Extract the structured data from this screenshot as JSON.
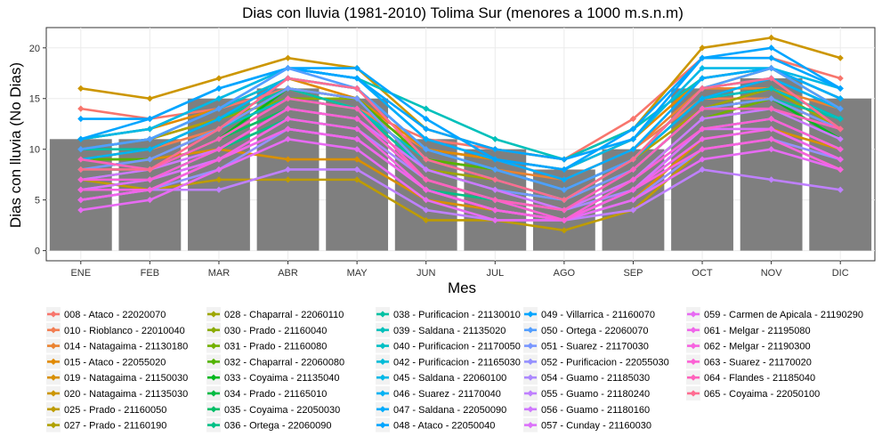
{
  "chart_data": {
    "type": "line",
    "title": "Dias con lluvia (1981-2010) Tolima Sur (menores a 1000 m.s.n.m)",
    "xlabel": "Mes",
    "ylabel": "Dias con lluvia (No Dias)",
    "categories": [
      "ENE",
      "FEB",
      "MAR",
      "ABR",
      "MAY",
      "JUN",
      "JUL",
      "AGO",
      "SEP",
      "OCT",
      "NOV",
      "DIC"
    ],
    "yticks": [
      0,
      5,
      10,
      15,
      20
    ],
    "ylim": [
      -1,
      22
    ],
    "bar_color": "#7f7f7f",
    "bars": [
      11,
      11,
      15,
      16,
      15,
      11,
      10,
      8,
      10,
      16,
      17,
      15
    ],
    "grid": true,
    "legend_position": "bottom",
    "series": [
      {
        "name": "008 - Ataco - 22020070",
        "color": "#F8766D",
        "values": [
          14,
          13,
          14,
          16,
          14,
          11,
          10,
          9,
          13,
          19,
          19,
          17
        ]
      },
      {
        "name": "010 - Rioblanco - 22010040",
        "color": "#F27D52",
        "values": [
          9,
          10,
          12,
          16,
          14,
          10,
          9,
          7,
          10,
          15,
          15,
          13
        ]
      },
      {
        "name": "014 - Natagaima - 21130180",
        "color": "#EA8331",
        "values": [
          10,
          11,
          13,
          15,
          14,
          9,
          8,
          7,
          10,
          16,
          16,
          14
        ]
      },
      {
        "name": "015 - Ataco - 22055020",
        "color": "#E18A00",
        "values": [
          11,
          12,
          14,
          17,
          15,
          10,
          9,
          8,
          11,
          17,
          18,
          15
        ]
      },
      {
        "name": "019 - Natagaima - 21150030",
        "color": "#D89000",
        "values": [
          9,
          9,
          10,
          9,
          9,
          5,
          4,
          3,
          5,
          11,
          12,
          10
        ]
      },
      {
        "name": "020 - Natagaima - 21135030",
        "color": "#CC9600",
        "values": [
          16,
          15,
          17,
          19,
          18,
          12,
          10,
          9,
          12,
          20,
          21,
          19
        ]
      },
      {
        "name": "025 - Prado - 21160050",
        "color": "#BE9C00",
        "values": [
          7,
          6,
          7,
          7,
          7,
          3,
          3,
          2,
          4,
          10,
          11,
          8
        ]
      },
      {
        "name": "027 - Prado - 21160190",
        "color": "#B0A100",
        "values": [
          10,
          11,
          13,
          15,
          14,
          9,
          8,
          6,
          9,
          14,
          15,
          12
        ]
      },
      {
        "name": "028 - Chaparral - 22060110",
        "color": "#9EA700",
        "values": [
          8,
          9,
          12,
          15,
          14,
          8,
          7,
          5,
          8,
          14,
          16,
          12
        ]
      },
      {
        "name": "030 - Prado - 21160040",
        "color": "#8AAB00",
        "values": [
          9,
          10,
          13,
          15,
          15,
          8,
          6,
          5,
          9,
          16,
          18,
          14
        ]
      },
      {
        "name": "031 - Prado - 21160080",
        "color": "#72B000",
        "values": [
          8,
          8,
          11,
          14,
          13,
          7,
          5,
          4,
          7,
          13,
          15,
          12
        ]
      },
      {
        "name": "032 - Chaparral - 22060080",
        "color": "#53B400",
        "values": [
          9,
          9,
          12,
          16,
          15,
          9,
          8,
          6,
          9,
          15,
          16,
          13
        ]
      },
      {
        "name": "033 - Coyaima - 21135040",
        "color": "#00B81F",
        "values": [
          7,
          8,
          11,
          16,
          15,
          8,
          6,
          5,
          8,
          14,
          15,
          11
        ]
      },
      {
        "name": "034 - Prado - 21165010",
        "color": "#00BB44",
        "values": [
          6,
          7,
          10,
          13,
          12,
          6,
          4,
          3,
          6,
          12,
          13,
          10
        ]
      },
      {
        "name": "035 - Coyaima - 22050030",
        "color": "#00BE67",
        "values": [
          8,
          8,
          11,
          14,
          13,
          7,
          5,
          3,
          7,
          13,
          14,
          11
        ]
      },
      {
        "name": "036 - Ortega - 22060090",
        "color": "#00C086",
        "values": [
          7,
          7,
          10,
          13,
          12,
          6,
          5,
          4,
          6,
          12,
          13,
          10
        ]
      },
      {
        "name": "038 - Purificacion - 21130010",
        "color": "#00C1A3",
        "values": [
          10,
          10,
          13,
          16,
          14,
          8,
          6,
          5,
          8,
          14,
          15,
          13
        ]
      },
      {
        "name": "039 - Saldana - 21135020",
        "color": "#00C0BB",
        "values": [
          11,
          12,
          15,
          18,
          17,
          14,
          11,
          9,
          12,
          17,
          18,
          15
        ]
      },
      {
        "name": "040 - Purificacion - 21170050",
        "color": "#00BFC4",
        "values": [
          8,
          9,
          12,
          15,
          14,
          9,
          7,
          5,
          9,
          15,
          16,
          13
        ]
      },
      {
        "name": "042 - Purificacion - 21165030",
        "color": "#00BCD8",
        "values": [
          10,
          11,
          14,
          17,
          16,
          10,
          8,
          6,
          9,
          16,
          17,
          14
        ]
      },
      {
        "name": "045 - Saldana - 22060100",
        "color": "#00B8E7",
        "values": [
          11,
          12,
          15,
          18,
          17,
          11,
          9,
          8,
          11,
          18,
          18,
          16
        ]
      },
      {
        "name": "046 - Suarez - 21170040",
        "color": "#00B2F3",
        "values": [
          9,
          10,
          13,
          17,
          16,
          10,
          8,
          6,
          9,
          15,
          17,
          14
        ]
      },
      {
        "name": "047 - Saldana - 22050090",
        "color": "#00ACFC",
        "values": [
          10,
          11,
          14,
          18,
          17,
          11,
          9,
          7,
          10,
          17,
          18,
          15
        ]
      },
      {
        "name": "048 - Ataco - 22050040",
        "color": "#00A5FF",
        "values": [
          11,
          13,
          16,
          18,
          18,
          13,
          9,
          8,
          12,
          19,
          19,
          16
        ]
      },
      {
        "name": "049 - Villarrica - 21160070",
        "color": "#00A5FF",
        "values": [
          13,
          13,
          16,
          18,
          17,
          12,
          10,
          9,
          11,
          19,
          20,
          16
        ]
      },
      {
        "name": "050 - Ortega - 22060070",
        "color": "#529EFF",
        "values": [
          10,
          11,
          14,
          18,
          16,
          10,
          8,
          6,
          9,
          16,
          18,
          14
        ]
      },
      {
        "name": "051 - Suarez - 21170030",
        "color": "#7997FF",
        "values": [
          8,
          9,
          12,
          16,
          15,
          8,
          6,
          5,
          8,
          14,
          15,
          12
        ]
      },
      {
        "name": "052 - Purificacion - 22055030",
        "color": "#9590FF",
        "values": [
          5,
          6,
          8,
          12,
          11,
          6,
          4,
          3,
          5,
          10,
          11,
          9
        ]
      },
      {
        "name": "054 - Guamo - 21185030",
        "color": "#AC88FF",
        "values": [
          6,
          7,
          9,
          13,
          12,
          7,
          5,
          4,
          6,
          12,
          13,
          10
        ]
      },
      {
        "name": "055 - Guamo - 21180240",
        "color": "#BF80FF",
        "values": [
          5,
          6,
          6,
          8,
          8,
          4,
          3,
          3,
          4,
          8,
          7,
          6
        ]
      },
      {
        "name": "056 - Guamo - 21180160",
        "color": "#CF78FF",
        "values": [
          7,
          8,
          10,
          14,
          13,
          8,
          6,
          4,
          7,
          13,
          14,
          11
        ]
      },
      {
        "name": "057 - Cunday - 21160030",
        "color": "#DC71FA",
        "values": [
          6,
          7,
          9,
          12,
          11,
          6,
          4,
          3,
          6,
          12,
          12,
          9
        ]
      },
      {
        "name": "059 - Carmen de Apicala - 21190290",
        "color": "#E76BF3",
        "values": [
          4,
          5,
          8,
          11,
          10,
          5,
          3,
          3,
          5,
          9,
          10,
          8
        ]
      },
      {
        "name": "061 - Melgar - 21195080",
        "color": "#F066EA",
        "values": [
          5,
          6,
          9,
          12,
          11,
          6,
          4,
          3,
          6,
          11,
          12,
          9
        ]
      },
      {
        "name": "062 - Melgar - 21190300",
        "color": "#F763E0",
        "values": [
          6,
          6,
          9,
          13,
          12,
          6,
          4,
          3,
          6,
          10,
          11,
          8
        ]
      },
      {
        "name": "063 - Suarez - 21170020",
        "color": "#FC61D5",
        "values": [
          7,
          7,
          10,
          14,
          13,
          7,
          5,
          3,
          7,
          12,
          13,
          10
        ]
      },
      {
        "name": "064 - Flandes - 21185040",
        "color": "#FF62BC",
        "values": [
          9,
          8,
          11,
          15,
          14,
          7,
          5,
          4,
          8,
          14,
          14,
          12
        ]
      },
      {
        "name": "065 - Coyaima - 22050100",
        "color": "#FF6C91",
        "values": [
          8,
          8,
          12,
          17,
          16,
          9,
          7,
          5,
          9,
          16,
          17,
          12
        ]
      }
    ]
  }
}
